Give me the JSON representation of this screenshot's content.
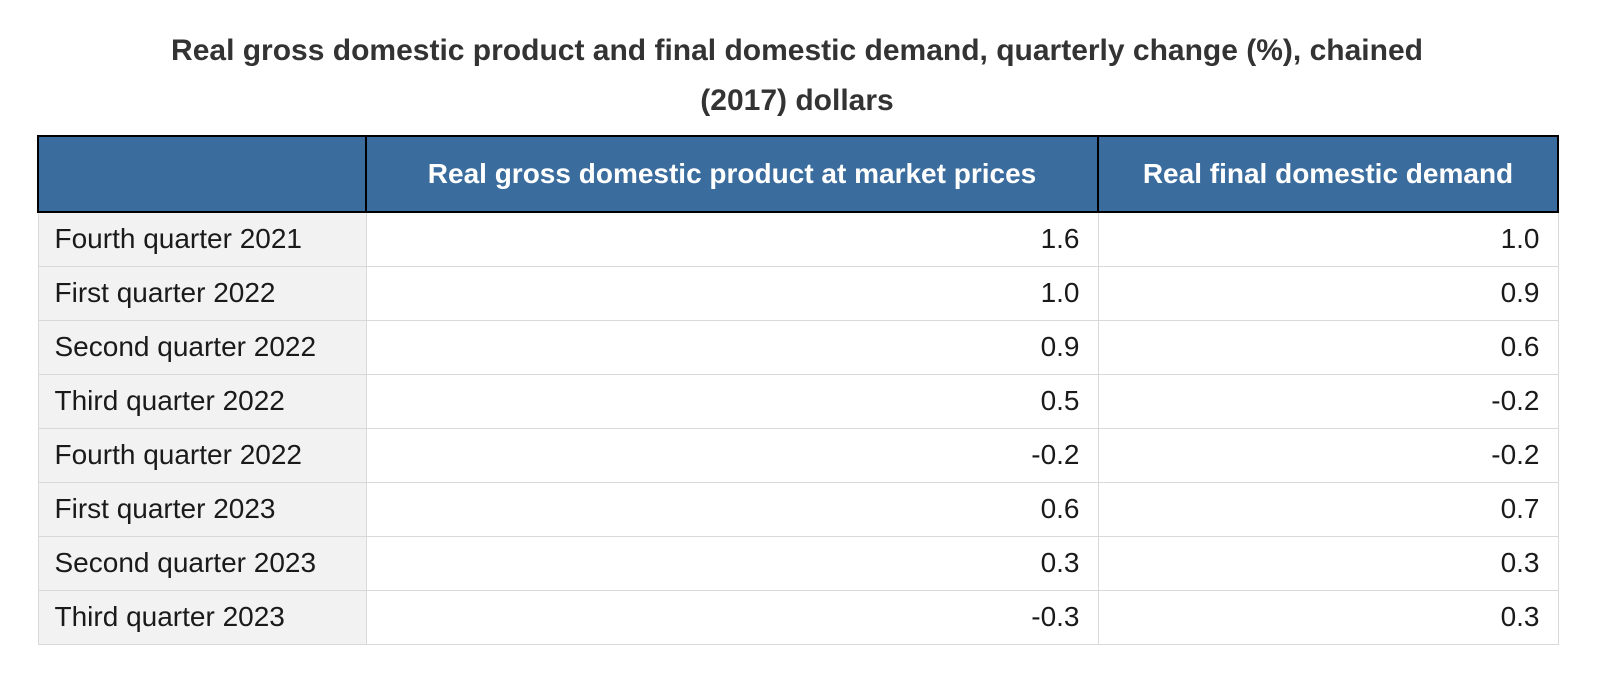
{
  "title": {
    "line1": "Real gross domestic product and final domestic demand, quarterly change (%), chained",
    "line2": "(2017) dollars"
  },
  "table": {
    "columns": [
      "",
      "Real gross domestic product at market prices",
      "Real final domestic demand"
    ],
    "rows": [
      {
        "label": "Fourth quarter 2021",
        "gdp": "1.6",
        "fdd": "1.0"
      },
      {
        "label": "First quarter 2022",
        "gdp": "1.0",
        "fdd": "0.9"
      },
      {
        "label": "Second quarter 2022",
        "gdp": "0.9",
        "fdd": "0.6"
      },
      {
        "label": "Third quarter 2022",
        "gdp": "0.5",
        "fdd": "-0.2"
      },
      {
        "label": "Fourth quarter 2022",
        "gdp": "-0.2",
        "fdd": "-0.2"
      },
      {
        "label": "First quarter 2023",
        "gdp": "0.6",
        "fdd": "0.7"
      },
      {
        "label": "Second quarter 2023",
        "gdp": "0.3",
        "fdd": "0.3"
      },
      {
        "label": "Third quarter 2023",
        "gdp": "-0.3",
        "fdd": "0.3"
      }
    ]
  },
  "colors": {
    "header_background": "#3a6c9e",
    "header_text": "#ffffff",
    "header_border": "#000000",
    "label_cell_background": "#f2f2f2",
    "data_cell_background": "#ffffff",
    "cell_border": "#d9d9d9",
    "title_text": "#333333",
    "cell_text": "#1a1a1a"
  },
  "chart_data": {
    "type": "table",
    "title": "Real gross domestic product and final domestic demand, quarterly change (%), chained (2017) dollars",
    "categories": [
      "Fourth quarter 2021",
      "First quarter 2022",
      "Second quarter 2022",
      "Third quarter 2022",
      "Fourth quarter 2022",
      "First quarter 2023",
      "Second quarter 2023",
      "Third quarter 2023"
    ],
    "series": [
      {
        "name": "Real gross domestic product at market prices",
        "values": [
          1.6,
          1.0,
          0.9,
          0.5,
          -0.2,
          0.6,
          0.3,
          -0.3
        ]
      },
      {
        "name": "Real final domestic demand",
        "values": [
          1.0,
          0.9,
          0.6,
          -0.2,
          -0.2,
          0.7,
          0.3,
          0.3
        ]
      }
    ]
  }
}
